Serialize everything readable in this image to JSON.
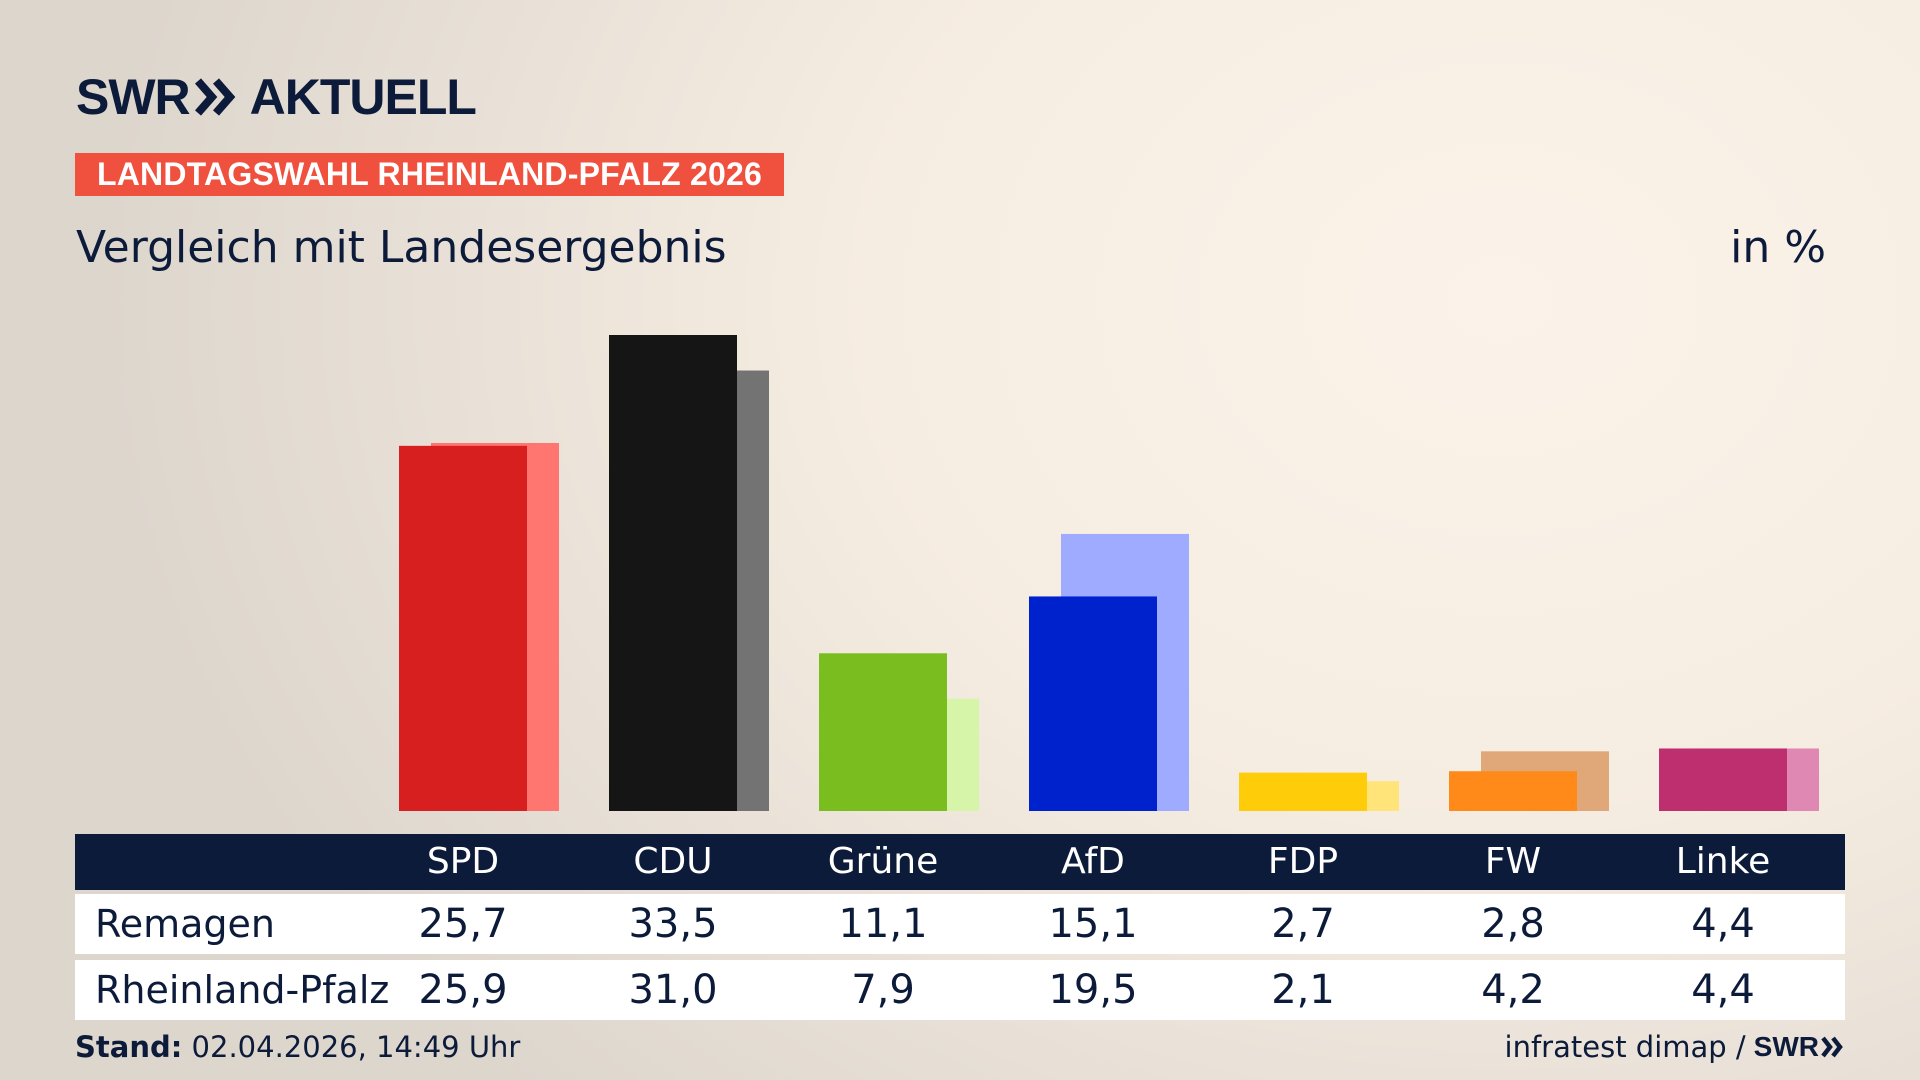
{
  "header": {
    "brand_swr": "SWR",
    "brand_aktuell": "AKTUELL",
    "badge": "LANDTAGSWAHL RHEINLAND-PFALZ 2026",
    "subtitle": "Vergleich mit Landesergebnis",
    "unit": "in %"
  },
  "table": {
    "rows": [
      {
        "label": "Remagen",
        "values": [
          "25,7",
          "33,5",
          "11,1",
          "15,1",
          "2,7",
          "2,8",
          "4,4"
        ]
      },
      {
        "label": "Rheinland-Pfalz",
        "values": [
          "25,9",
          "31,0",
          "7,9",
          "19,5",
          "2,1",
          "4,2",
          "4,4"
        ]
      }
    ]
  },
  "footer": {
    "stand_label": "Stand:",
    "stand_value": "02.04.2026, 14:49 Uhr",
    "source": "infratest dimap /",
    "source_brand": "SWR"
  },
  "colors": {
    "navy": "#0d1b3a",
    "badge": "#f0513f"
  },
  "chart_data": {
    "type": "bar",
    "title": "Vergleich mit Landesergebnis",
    "ylabel": "in %",
    "ylim": [
      0,
      33.5
    ],
    "categories": [
      "SPD",
      "CDU",
      "Grüne",
      "AfD",
      "FDP",
      "FW",
      "Linke"
    ],
    "series": [
      {
        "name": "Remagen",
        "values": [
          25.7,
          33.5,
          11.1,
          15.1,
          2.7,
          2.8,
          4.4
        ],
        "colors": [
          "#d81f1f",
          "#151515",
          "#7abd1e",
          "#0022cc",
          "#ffcc0a",
          "#ff8a1a",
          "#bd2f6e"
        ]
      },
      {
        "name": "Rheinland-Pfalz",
        "values": [
          25.9,
          31.0,
          7.9,
          19.5,
          2.1,
          4.2,
          4.4
        ],
        "colors": [
          "#ff7670",
          "#737373",
          "#d6f5a8",
          "#9eabff",
          "#ffe47a",
          "#e0a878",
          "#e088b4"
        ]
      }
    ]
  }
}
